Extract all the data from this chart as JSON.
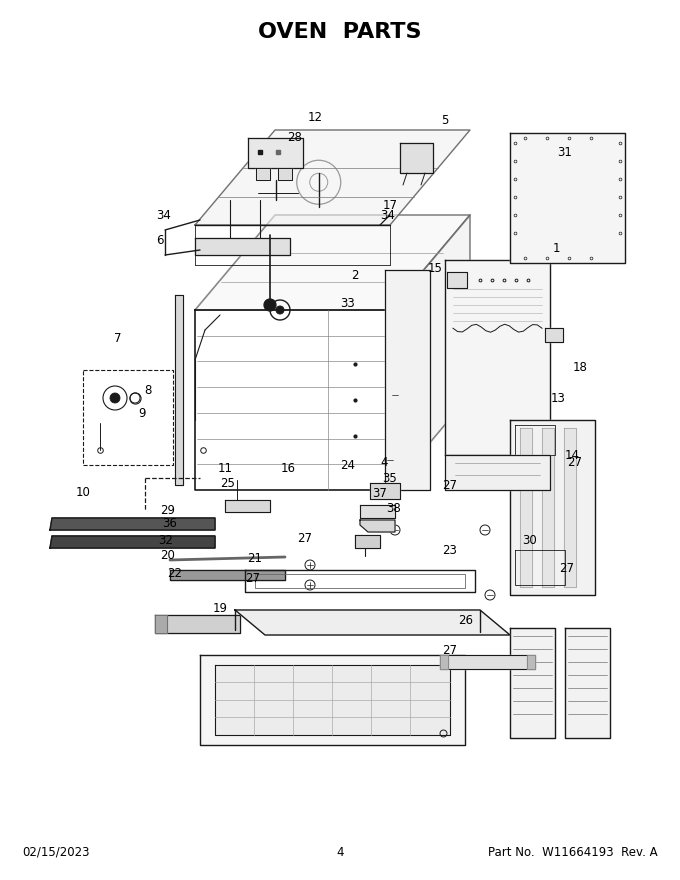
{
  "title": "OVEN  PARTS",
  "title_fontsize": 16,
  "title_fontweight": "bold",
  "footer_left": "02/15/2023",
  "footer_center": "4",
  "footer_right": "Part No.  W11664193  Rev. A",
  "footer_fontsize": 8.5,
  "background_color": "#ffffff",
  "text_color": "#000000",
  "figsize": [
    6.8,
    8.8
  ],
  "dpi": 100
}
